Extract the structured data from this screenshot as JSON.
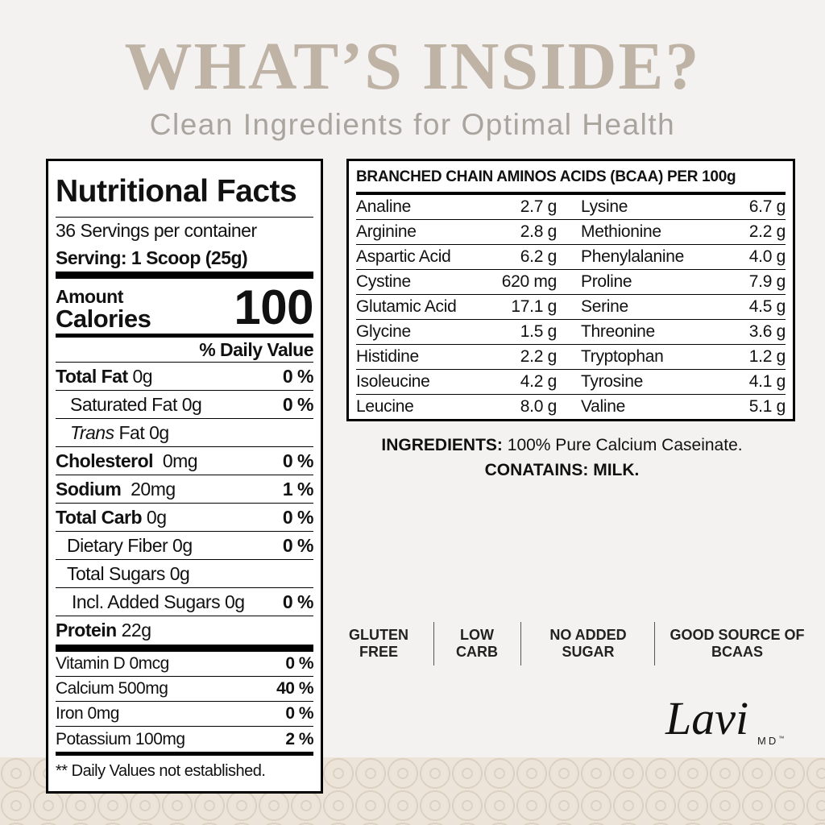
{
  "header": {
    "title": "WHAT’S INSIDE?",
    "subtitle": "Clean Ingredients for Optimal Health"
  },
  "nutrition": {
    "title": "Nutritional Facts",
    "servings": "36 Servings per container",
    "serving": "Serving: 1 Scoop (25g)",
    "amount_label": "Amount",
    "calories_label": "Calories",
    "calories": "100",
    "dv_header": "% Daily Value",
    "rows": [
      {
        "name": "Total Fat",
        "amount": "0g",
        "dv": "0 %"
      },
      {
        "name": "Saturated Fat 0g",
        "dv": "0 %"
      },
      {
        "name": "Trans",
        "amount": "Fat 0g"
      },
      {
        "name": "Cholesterol",
        "amount": "0mg",
        "dv": "0 %"
      },
      {
        "name": "Sodium",
        "amount": "20mg",
        "dv": "1 %"
      },
      {
        "name": "Total Carb",
        "amount": "0g",
        "dv": "0 %"
      },
      {
        "name": "Dietary Fiber 0g",
        "dv": "0 %"
      },
      {
        "name": "Total Sugars 0g"
      },
      {
        "name": "Incl. Added Sugars 0g",
        "dv": "0 %"
      },
      {
        "name": "Protein",
        "amount": "22g"
      }
    ],
    "vitamins": [
      {
        "name": "Vitamin D 0mcg",
        "dv": "0 %"
      },
      {
        "name": "Calcium 500mg",
        "dv": "40 %"
      },
      {
        "name": "Iron 0mg",
        "dv": "0 %"
      },
      {
        "name": "Potassium 100mg",
        "dv": "2 %"
      }
    ],
    "footnote": "** Daily Values not established."
  },
  "bcaa": {
    "title": "BRANCHED CHAIN AMINOS ACIDS (BCAA) PER 100g",
    "rows": [
      [
        "Analine",
        "2.7 g",
        "Lysine",
        "6.7 g"
      ],
      [
        "Arginine",
        "2.8 g",
        "Methionine",
        "2.2 g"
      ],
      [
        "Aspartic Acid",
        "6.2 g",
        "Phenylalanine",
        "4.0 g"
      ],
      [
        "Cystine",
        "620 mg",
        "Proline",
        "7.9 g"
      ],
      [
        "Glutamic Acid",
        "17.1 g",
        "Serine",
        "4.5 g"
      ],
      [
        "Glycine",
        "1.5 g",
        "Threonine",
        "3.6 g"
      ],
      [
        "Histidine",
        "2.2 g",
        "Tryptophan",
        "1.2 g"
      ],
      [
        "Isoleucine",
        "4.2 g",
        "Tyrosine",
        "4.1 g"
      ],
      [
        "Leucine",
        "8.0 g",
        "Valine",
        "5.1 g"
      ]
    ]
  },
  "ingredients": {
    "label": "INGREDIENTS:",
    "text": "100% Pure Calcium Caseinate.",
    "contains_label": "CONATAINS:",
    "contains": "MILK."
  },
  "badges": [
    "GLUTEN FREE",
    "LOW CARB",
    "NO ADDED SUGAR",
    "GOOD SOURCE OF BCAAS"
  ],
  "logo": {
    "name": "Lavi",
    "suffix": "MD",
    "mark": "™"
  }
}
